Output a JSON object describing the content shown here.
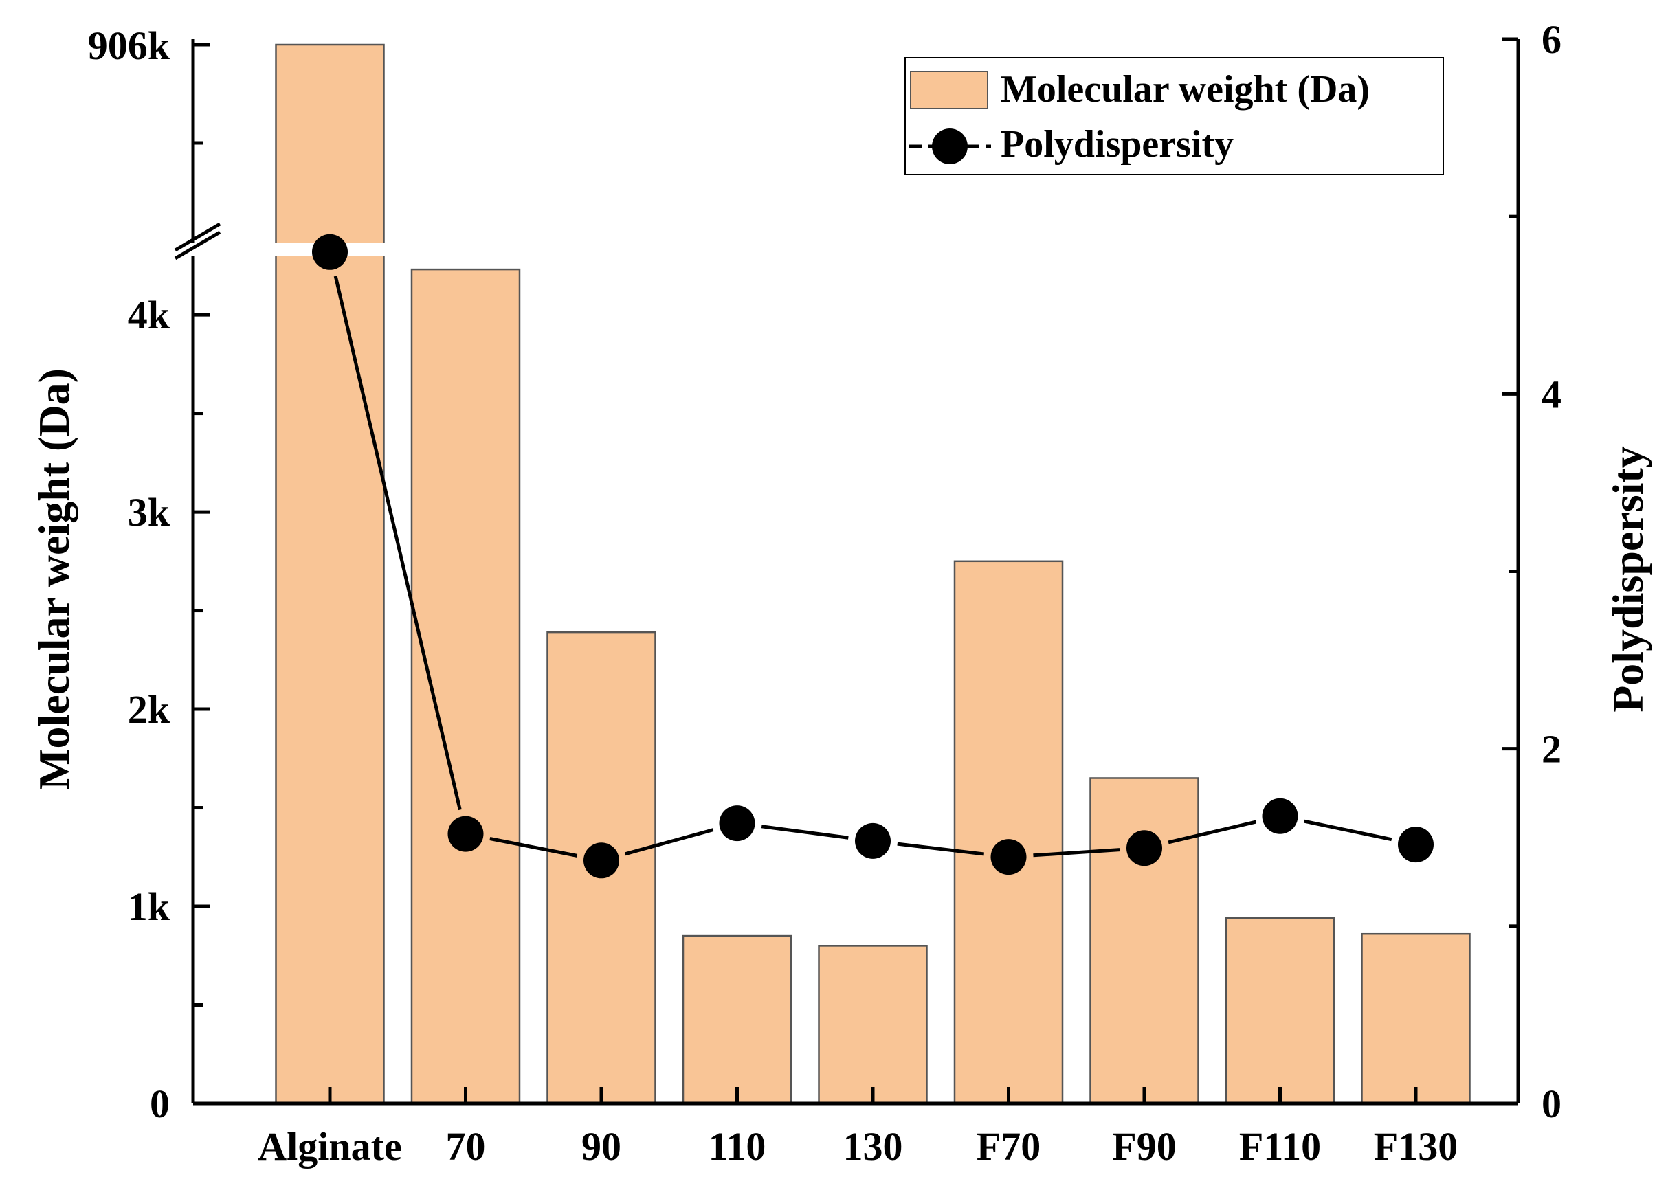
{
  "chart_data": {
    "type": "bar+line",
    "categories": [
      "Alginate",
      "70",
      "90",
      "110",
      "130",
      "F70",
      "F90",
      "F110",
      "F130"
    ],
    "series": [
      {
        "name": "Molecular weight (Da)",
        "type": "bar",
        "axis": "left",
        "values": [
          906000,
          4230,
          2390,
          850,
          800,
          2750,
          1650,
          940,
          860
        ]
      },
      {
        "name": "Polydispersity",
        "type": "line",
        "axis": "right",
        "values": [
          4.8,
          1.52,
          1.37,
          1.58,
          1.48,
          1.39,
          1.44,
          1.62,
          1.46
        ]
      }
    ],
    "left_axis": {
      "label": "Molecular weight (Da)",
      "ylim": [
        0,
        4300
      ],
      "tick_values": [
        0,
        1000,
        2000,
        3000,
        4000
      ],
      "tick_labels": [
        "0",
        "1k",
        "2k",
        "3k",
        "4k"
      ],
      "minor_step": 500,
      "break": true,
      "top_label": "906k",
      "top_value": 906000
    },
    "right_axis": {
      "label": "Polydispersity",
      "ylim": [
        0,
        6
      ],
      "tick_values": [
        0,
        2,
        4,
        6
      ],
      "tick_labels": [
        "0",
        "2",
        "4",
        "6"
      ],
      "minor_step": 1
    },
    "legend": {
      "position": "top-right",
      "entries": [
        "Molecular weight (Da)",
        "Polydispersity"
      ]
    },
    "colors": {
      "bar_fill": "#f9c596",
      "bar_edge": "#555555",
      "line": "#000000",
      "marker": "#000000"
    }
  }
}
